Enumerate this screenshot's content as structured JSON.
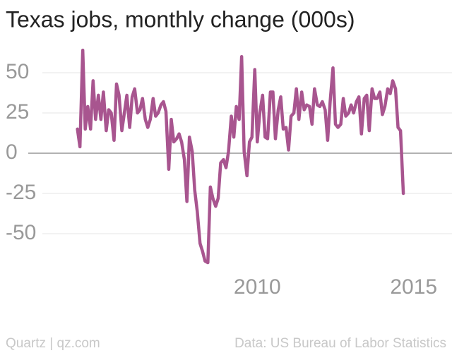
{
  "chart_data": {
    "type": "line",
    "title": "Texas jobs, monthly change (000s)",
    "source": "Data: US Bureau of Labor Statistics",
    "credit": "Quartz | qz.com",
    "x": [
      2004.25,
      2004.33,
      2004.42,
      2004.5,
      2004.58,
      2004.67,
      2004.75,
      2004.83,
      2004.92,
      2005.0,
      2005.08,
      2005.17,
      2005.25,
      2005.33,
      2005.42,
      2005.5,
      2005.58,
      2005.67,
      2005.75,
      2005.83,
      2005.92,
      2006.0,
      2006.08,
      2006.17,
      2006.25,
      2006.33,
      2006.42,
      2006.5,
      2006.58,
      2006.67,
      2006.75,
      2006.83,
      2006.92,
      2007.0,
      2007.08,
      2007.17,
      2007.25,
      2007.33,
      2007.42,
      2007.5,
      2007.58,
      2007.67,
      2007.75,
      2007.83,
      2007.92,
      2008.0,
      2008.08,
      2008.17,
      2008.25,
      2008.33,
      2008.42,
      2008.5,
      2008.58,
      2008.67,
      2008.75,
      2008.83,
      2008.92,
      2009.0,
      2009.08,
      2009.17,
      2009.25,
      2009.33,
      2009.42,
      2009.5,
      2009.58,
      2009.67,
      2009.75,
      2009.83,
      2009.92,
      2010.0,
      2010.08,
      2010.17,
      2010.25,
      2010.33,
      2010.42,
      2010.5,
      2010.58,
      2010.67,
      2010.75,
      2010.83,
      2010.92,
      2011.0,
      2011.08,
      2011.17,
      2011.25,
      2011.33,
      2011.42,
      2011.5,
      2011.58,
      2011.67,
      2011.75,
      2011.83,
      2011.92,
      2012.0,
      2012.08,
      2012.17,
      2012.25,
      2012.33,
      2012.42,
      2012.5,
      2012.58,
      2012.67,
      2012.75,
      2012.83,
      2012.92,
      2013.0,
      2013.08,
      2013.17,
      2013.25,
      2013.33,
      2013.42,
      2013.5,
      2013.58,
      2013.67,
      2013.75,
      2013.83,
      2013.92,
      2014.0,
      2014.08,
      2014.17,
      2014.25,
      2014.33,
      2014.42,
      2014.5,
      2014.58,
      2014.67
    ],
    "series": [
      {
        "name": "Monthly change",
        "color": "#a8558f",
        "values": [
          15,
          4,
          64,
          15,
          29,
          15,
          45,
          21,
          36,
          21,
          38,
          14,
          27,
          25,
          8,
          43,
          36,
          14,
          25,
          36,
          16,
          35,
          40,
          25,
          27,
          34,
          21,
          16,
          21,
          34,
          23,
          25,
          30,
          32,
          26,
          -10,
          21,
          7,
          9,
          12,
          7,
          -4,
          -30,
          10,
          1,
          -23,
          -36,
          -56,
          -61,
          -67,
          -68,
          -21,
          -28,
          -33,
          -28,
          -6,
          -4,
          -9,
          1,
          23,
          10,
          29,
          21,
          60,
          1,
          -14,
          7,
          10,
          52,
          7,
          25,
          36,
          10,
          9,
          38,
          38,
          9,
          27,
          35,
          15,
          16,
          2,
          23,
          25,
          40,
          21,
          38,
          27,
          30,
          29,
          18,
          40,
          30,
          29,
          32,
          27,
          8,
          32,
          53,
          18,
          16,
          18,
          34,
          23,
          25,
          30,
          25,
          32,
          35,
          12,
          34,
          36,
          14,
          40,
          34,
          34,
          38,
          24,
          29,
          40,
          37,
          45,
          40,
          16,
          14,
          -25
        ]
      }
    ],
    "xlim": [
      2002,
      2016
    ],
    "xticks": [
      2010,
      2015
    ],
    "ylim": [
      -70,
      70
    ],
    "yticks": [
      -50,
      -25,
      0,
      25,
      50
    ],
    "grid": true
  }
}
